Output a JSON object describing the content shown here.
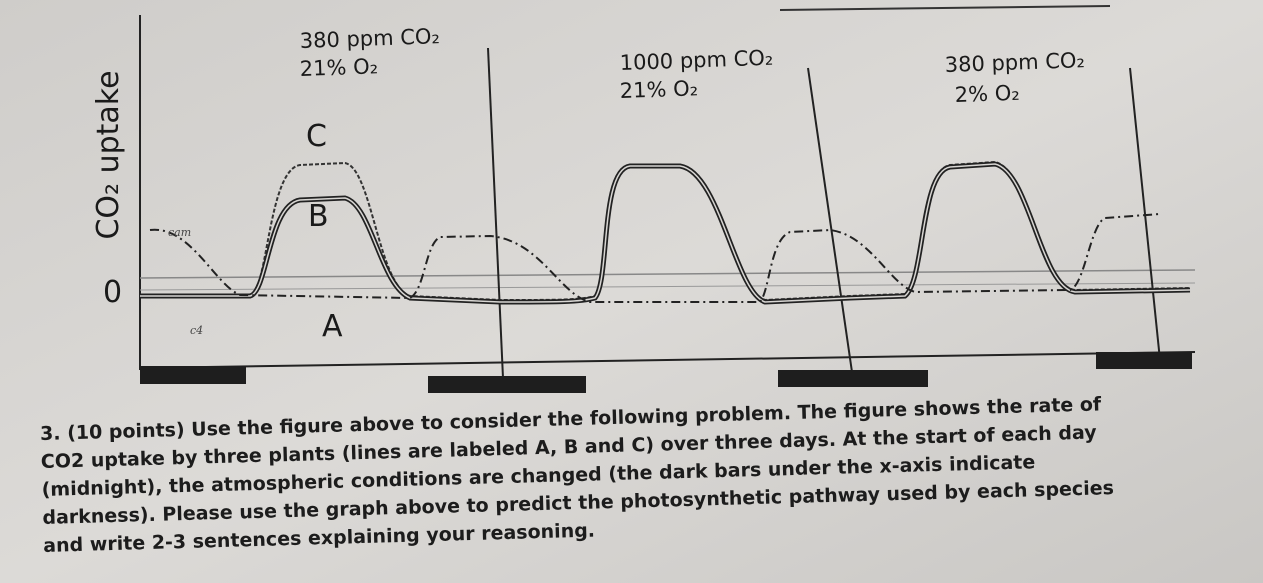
{
  "figure": {
    "y_axis_label": "CO₂ uptake",
    "zero_label": "0",
    "panels": [
      {
        "co2": "380 ppm CO₂",
        "o2": "21% O₂"
      },
      {
        "co2": "1000 ppm CO₂",
        "o2": "21% O₂"
      },
      {
        "co2": "380 ppm CO₂",
        "o2": "2% O₂"
      }
    ],
    "curve_labels": {
      "c": "C",
      "b": "B",
      "a": "A"
    },
    "handwritten": {
      "cam": "cam",
      "c4": "c4"
    }
  },
  "question": {
    "lines": [
      "3. (10 points) Use the figure above to consider the following problem. The figure shows the rate of",
      "CO2 uptake by three plants (lines are labeled A, B and C) over three days.  At the start of each day",
      "(midnight), the atmospheric conditions are changed (the dark bars under the x-axis indicate",
      "darkness).  Please use the graph above to predict the photosynthetic pathway used by each species",
      "and write 2-3 sentences explaining your reasoning."
    ]
  }
}
